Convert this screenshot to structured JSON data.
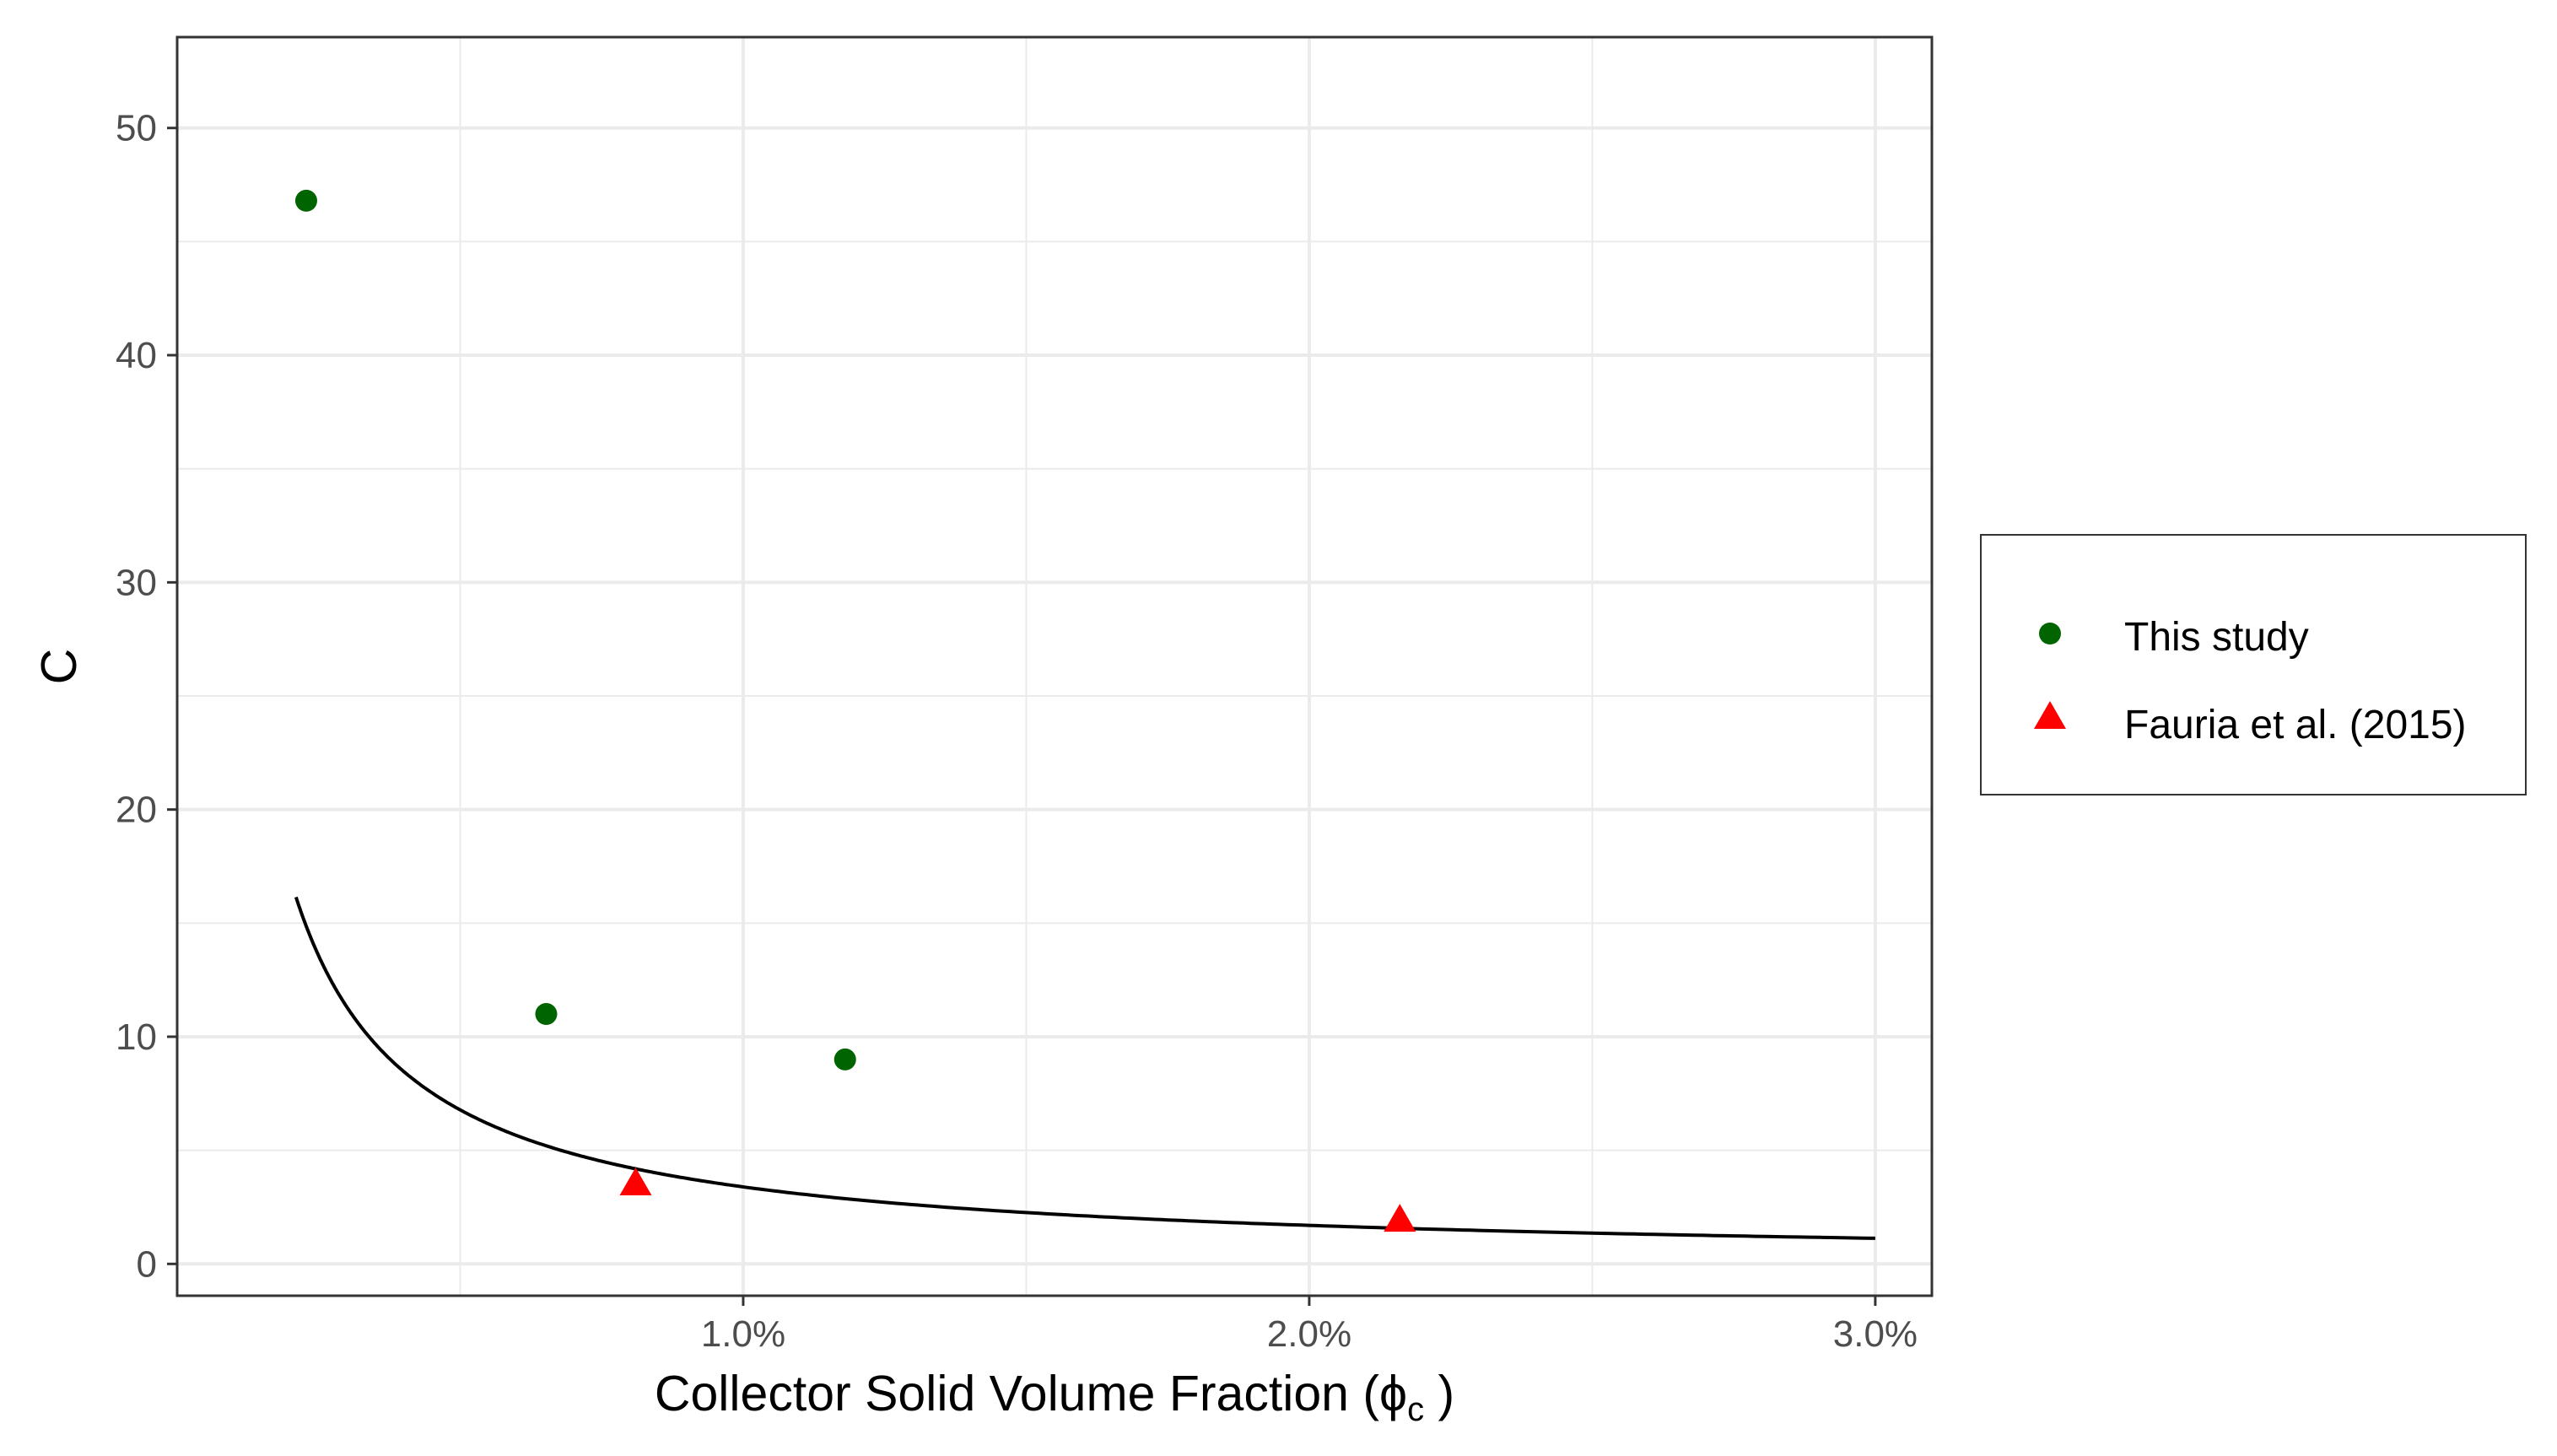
{
  "chart_data": {
    "type": "scatter",
    "xlabel_main": "Collector Solid Volume Fraction (",
    "xlabel_symbol": "ϕ",
    "xlabel_sub": "c",
    "xlabel_close": " )",
    "ylabel": "C",
    "xlim": [
      0.0,
      0.031
    ],
    "ylim": [
      -1.4,
      54.0
    ],
    "x_ticks": [
      {
        "value": 0.01,
        "label": "1.0%"
      },
      {
        "value": 0.02,
        "label": "2.0%"
      },
      {
        "value": 0.03,
        "label": "3.0%"
      }
    ],
    "x_minor_ticks": [
      0.005,
      0.015,
      0.025
    ],
    "y_ticks": [
      {
        "value": 0,
        "label": "0"
      },
      {
        "value": 10,
        "label": "10"
      },
      {
        "value": 20,
        "label": "20"
      },
      {
        "value": 30,
        "label": "30"
      },
      {
        "value": 40,
        "label": "40"
      },
      {
        "value": 50,
        "label": "50"
      }
    ],
    "y_minor_ticks": [
      5,
      15,
      25,
      35,
      45
    ],
    "grid": true,
    "legend_position": "right",
    "series": [
      {
        "name": "This study",
        "marker": "circle",
        "color": "#006400",
        "points": [
          {
            "x": 0.00228,
            "y": 46.8
          },
          {
            "x": 0.00652,
            "y": 11.0
          },
          {
            "x": 0.0118,
            "y": 9.0
          }
        ]
      },
      {
        "name": "Fauria et al. (2015)",
        "marker": "triangle",
        "color": "#ff0000",
        "points": [
          {
            "x": 0.0081,
            "y": 3.5
          },
          {
            "x": 0.0216,
            "y": 1.9
          }
        ]
      }
    ],
    "fit_curve": {
      "form": "y = a / x",
      "a": 0.0339,
      "x_range": [
        0.0021,
        0.03
      ],
      "color": "#000000"
    }
  }
}
